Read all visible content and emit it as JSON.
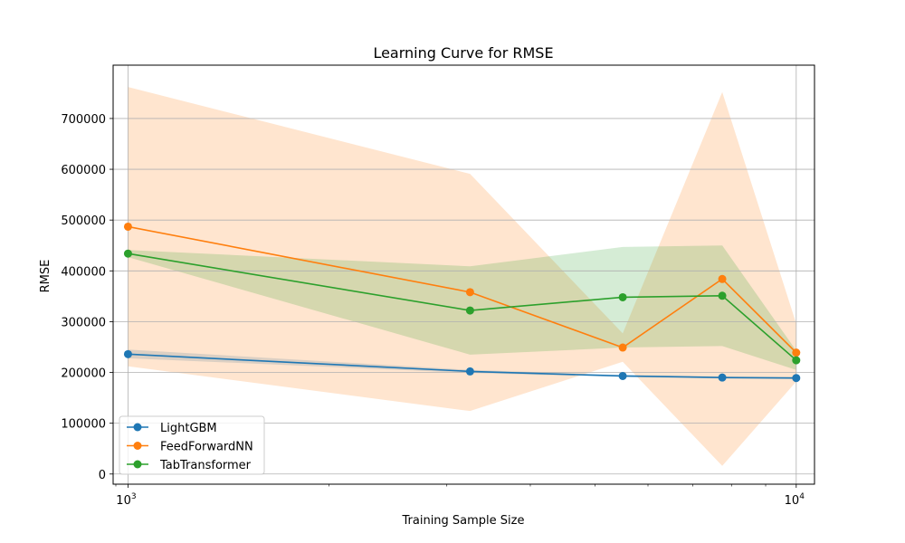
{
  "chart_data": {
    "type": "line",
    "title": "Learning Curve for RMSE",
    "xlabel": "Training Sample Size",
    "ylabel": "RMSE",
    "xscale": "log",
    "xlim": [
      950,
      10650
    ],
    "ylim": [
      -20000,
      805000
    ],
    "x_tick_labels": [
      {
        "value": 1000,
        "base": "10",
        "exp": "3"
      },
      {
        "value": 10000,
        "base": "10",
        "exp": "4"
      }
    ],
    "y_ticks": [
      0,
      100000,
      200000,
      300000,
      400000,
      500000,
      600000,
      700000
    ],
    "y_tick_labels": [
      "0",
      "100000",
      "200000",
      "300000",
      "400000",
      "500000",
      "600000",
      "700000"
    ],
    "grid": true,
    "legend_position": "lower-left",
    "x": [
      1000,
      3250,
      5500,
      7750,
      10000
    ],
    "series": [
      {
        "name": "LightGBM",
        "color": "#1f77b4",
        "band_color": "#1f77b4",
        "values": [
          236000,
          202000,
          193000,
          190000,
          189000
        ],
        "lower": [
          228000,
          199000,
          191000,
          188000,
          187000
        ],
        "upper": [
          245000,
          205000,
          195000,
          192000,
          191000
        ]
      },
      {
        "name": "FeedForwardNN",
        "color": "#ff7f0e",
        "band_color": "#ff7f0e",
        "values": [
          487000,
          358000,
          249000,
          384000,
          239000
        ],
        "lower": [
          212000,
          124000,
          221000,
          16000,
          182000
        ],
        "upper": [
          762000,
          591000,
          277000,
          752000,
          296000
        ]
      },
      {
        "name": "TabTransformer",
        "color": "#2ca02c",
        "band_color": "#2ca02c",
        "values": [
          434000,
          322000,
          348000,
          351000,
          224000
        ],
        "lower": [
          427000,
          235000,
          249000,
          252000,
          205000
        ],
        "upper": [
          441000,
          409000,
          447000,
          450000,
          243000
        ]
      }
    ]
  }
}
